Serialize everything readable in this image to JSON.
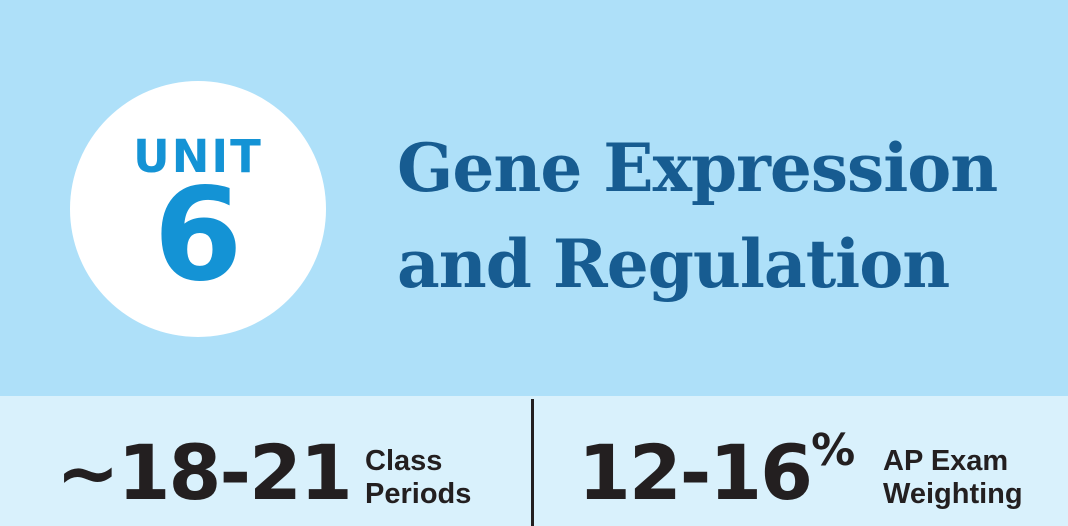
{
  "unit": {
    "word": "UNIT",
    "number": "6"
  },
  "title": {
    "line1": "Gene Expression",
    "line2": "and Regulation"
  },
  "stats": {
    "periods": {
      "value": "~18-21",
      "label_line1": "Class",
      "label_line2": "Periods"
    },
    "weighting": {
      "value": "12-16",
      "suffix": "%",
      "label_line1": "AP Exam",
      "label_line2": "Weighting"
    }
  },
  "colors": {
    "header_bg": "#aee0f9",
    "stats_bg": "#d9f1fc",
    "unit_blue": "#1493d5",
    "title_blue": "#175c91",
    "text_dark": "#231f20"
  }
}
